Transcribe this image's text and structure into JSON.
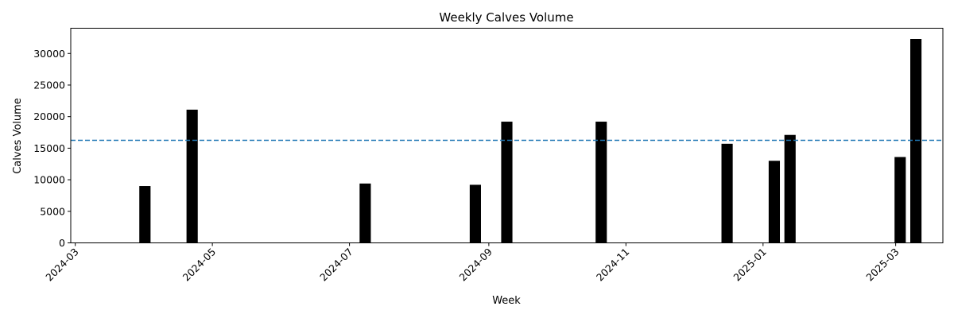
{
  "chart_data": {
    "type": "bar",
    "title": "Weekly Calves Volume",
    "xlabel": "Week",
    "ylabel": "Calves Volume",
    "x_axis_type": "date",
    "x_range": [
      "2024-02-28",
      "2025-03-22"
    ],
    "x_ticks": [
      "2024-03",
      "2024-05",
      "2024-07",
      "2024-09",
      "2024-11",
      "2025-01",
      "2025-03"
    ],
    "x_tick_dates": [
      "2024-03-01",
      "2024-05-01",
      "2024-07-01",
      "2024-09-01",
      "2024-11-01",
      "2025-01-01",
      "2025-03-01"
    ],
    "ylim": [
      0,
      34000
    ],
    "y_ticks": [
      0,
      5000,
      10000,
      15000,
      20000,
      25000,
      30000
    ],
    "bars": [
      {
        "date": "2024-04-01",
        "value": 9000
      },
      {
        "date": "2024-04-22",
        "value": 21100
      },
      {
        "date": "2024-07-08",
        "value": 9400
      },
      {
        "date": "2024-08-26",
        "value": 9200
      },
      {
        "date": "2024-09-09",
        "value": 19200
      },
      {
        "date": "2024-10-21",
        "value": 19200
      },
      {
        "date": "2024-12-16",
        "value": 15700
      },
      {
        "date": "2025-01-06",
        "value": 13000
      },
      {
        "date": "2025-01-13",
        "value": 17100
      },
      {
        "date": "2025-03-03",
        "value": 13600
      },
      {
        "date": "2025-03-10",
        "value": 32300
      }
    ],
    "bar_color": "#000000",
    "reference_line": {
      "value": 16250,
      "style": "dashed",
      "color": "#1f77b4"
    },
    "grid": false,
    "legend": "none"
  }
}
